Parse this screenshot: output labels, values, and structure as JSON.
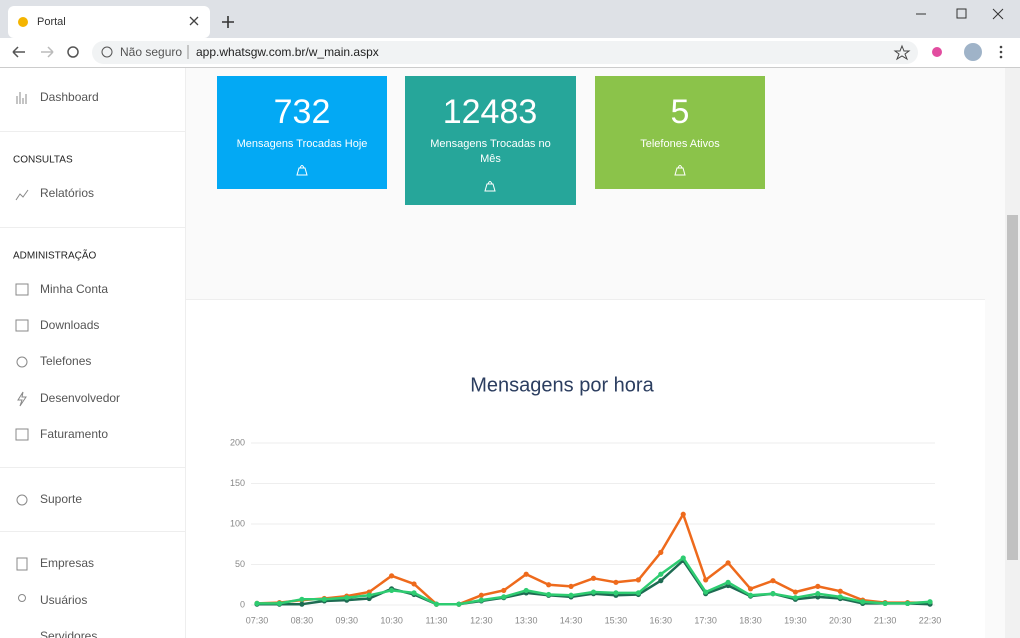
{
  "browser": {
    "tab_title": "Portal",
    "security": "Não seguro",
    "url": "app.whatsgw.com.br/w_main.aspx"
  },
  "sidebar": {
    "dashboard": "Dashboard",
    "consultas": "CONSULTAS",
    "relatorios": "Relatórios",
    "administracao": "ADMINISTRAÇÃO",
    "admin_items": [
      "Minha Conta",
      "Downloads",
      "Telefones",
      "Desenvolvedor",
      "Faturamento"
    ],
    "suporte": "Suporte",
    "other_items": [
      "Empresas",
      "Usuários",
      "Servidores"
    ]
  },
  "cards": [
    {
      "value": 732,
      "label": "Mensagens Trocadas Hoje"
    },
    {
      "value": 12483,
      "label": "Mensagens Trocadas no Mês"
    },
    {
      "value": 5,
      "label": "Telefones Ativos"
    }
  ],
  "chart_data": {
    "type": "line",
    "title": "Mensagens por hora",
    "categories": [
      "07:30",
      null,
      "08:30",
      null,
      "09:30",
      null,
      "10:30",
      null,
      "11:30",
      null,
      "12:30",
      null,
      "13:30",
      null,
      "14:30",
      null,
      "15:30",
      null,
      "16:30",
      null,
      "17:30",
      null,
      "18:30",
      null,
      "19:30",
      null,
      "20:30",
      null,
      "21:30",
      null,
      "22:30"
    ],
    "series": [
      {
        "color": "#ee6a1c",
        "values": [
          2,
          3,
          6,
          8,
          11,
          16,
          36,
          26,
          1,
          1,
          12,
          18,
          38,
          25,
          23,
          33,
          28,
          31,
          65,
          112,
          31,
          52,
          20,
          30,
          16,
          23,
          17,
          6,
          3,
          3,
          3
        ]
      },
      {
        "color": "#1e6b52",
        "values": [
          1,
          1,
          1,
          5,
          6,
          8,
          20,
          13,
          1,
          1,
          5,
          9,
          15,
          12,
          10,
          14,
          12,
          13,
          30,
          55,
          14,
          24,
          11,
          14,
          7,
          10,
          8,
          2,
          2,
          2,
          1
        ]
      },
      {
        "color": "#2ecc71",
        "values": [
          2,
          2,
          7,
          7,
          9,
          12,
          18,
          15,
          1,
          1,
          6,
          10,
          18,
          13,
          12,
          16,
          15,
          15,
          38,
          58,
          16,
          28,
          12,
          14,
          9,
          14,
          10,
          4,
          2,
          2,
          4
        ]
      }
    ],
    "ylim": [
      0,
      200
    ],
    "yticks": [
      0,
      50,
      100,
      150,
      200
    ],
    "grid": true
  }
}
